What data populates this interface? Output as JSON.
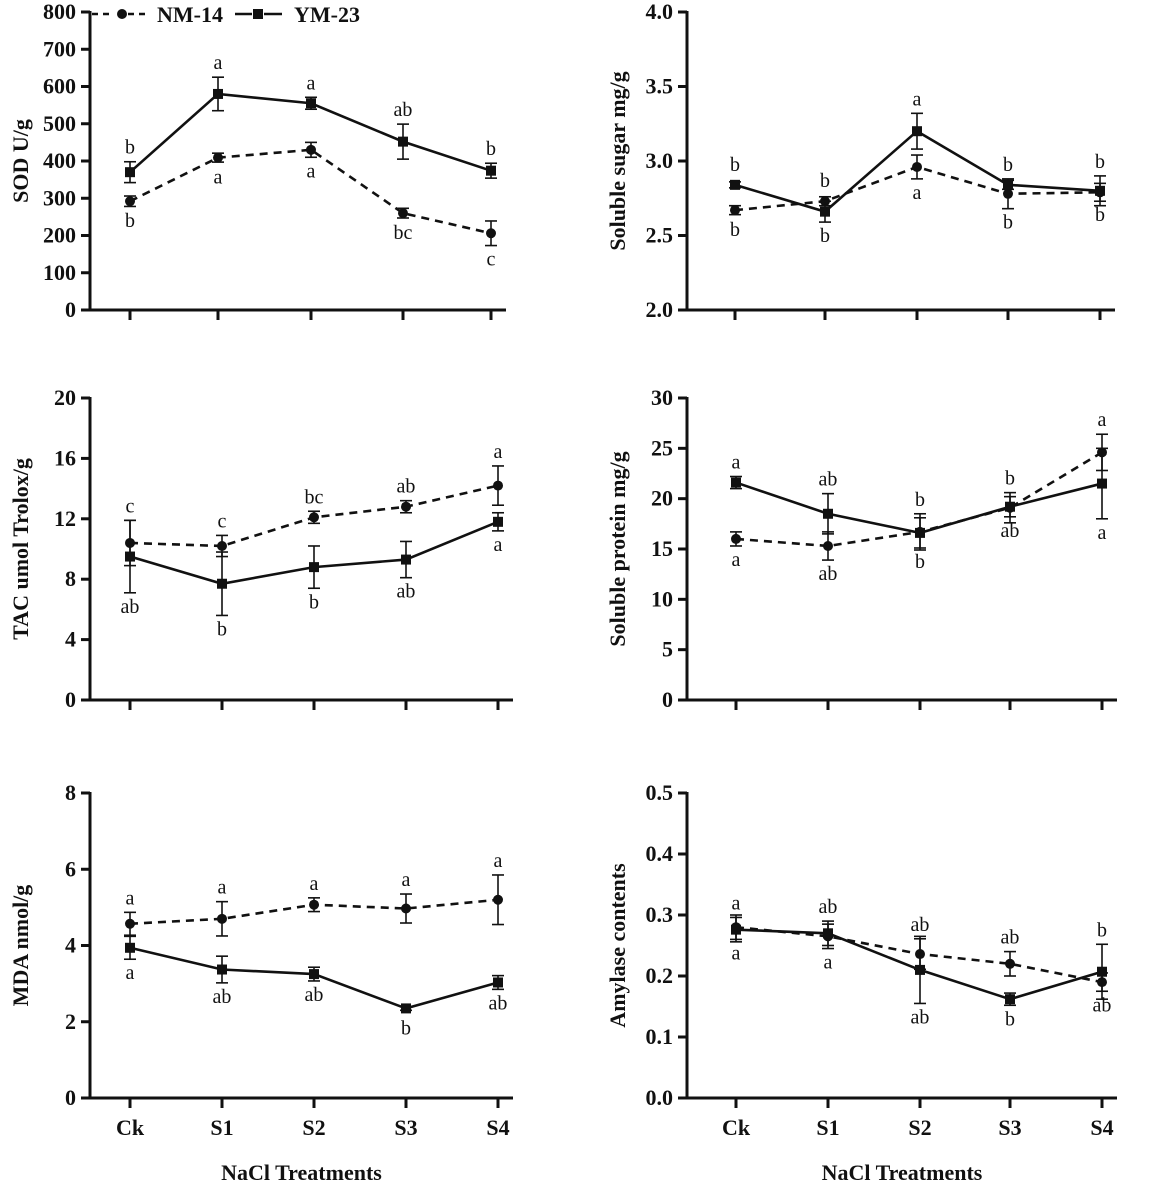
{
  "legend": {
    "series": [
      {
        "name": "NM-14",
        "style": "dashed",
        "marker": "circle"
      },
      {
        "name": "YM-23",
        "style": "solid",
        "marker": "square"
      }
    ]
  },
  "chart_data": [
    {
      "type": "line",
      "ylabel": "SOD U/g",
      "xlabel": "",
      "categories": [
        "Ck",
        "S1",
        "S2",
        "S3",
        "S4"
      ],
      "show_x_tick_labels": false,
      "ylim": [
        0,
        800
      ],
      "yticks": [
        "0",
        "100",
        "200",
        "300",
        "400",
        "500",
        "600",
        "700",
        "800"
      ],
      "series": [
        {
          "name": "NM-14",
          "values": [
            292,
            409,
            430,
            260,
            206
          ],
          "errors": [
            14,
            12,
            20,
            13,
            33
          ],
          "sig": [
            "b",
            "a",
            "a",
            "bc",
            "c"
          ],
          "sig_pos": [
            "below",
            "below",
            "below",
            "below",
            "below"
          ]
        },
        {
          "name": "YM-23",
          "values": [
            370,
            580,
            555,
            452,
            374
          ],
          "errors": [
            28,
            45,
            16,
            47,
            20
          ],
          "sig": [
            "b",
            "a",
            "a",
            "ab",
            "b"
          ],
          "sig_pos": [
            "above",
            "above",
            "above",
            "above",
            "above"
          ]
        }
      ]
    },
    {
      "type": "line",
      "ylabel": "Soluble sugar mg/g",
      "xlabel": "",
      "categories": [
        "Ck",
        "S1",
        "S2",
        "S3",
        "S4"
      ],
      "show_x_tick_labels": false,
      "ylim": [
        2.0,
        4.0
      ],
      "yticks": [
        "2.0",
        "2.5",
        "3.0",
        "3.5",
        "4.0"
      ],
      "series": [
        {
          "name": "NM-14",
          "values": [
            2.67,
            2.73,
            2.96,
            2.78,
            2.79
          ],
          "errors": [
            0.03,
            0.03,
            0.08,
            0.1,
            0.06
          ],
          "sig": [
            "b",
            "b",
            "a",
            "b",
            "b"
          ],
          "sig_pos": [
            "below",
            "above",
            "below",
            "below",
            "below"
          ]
        },
        {
          "name": "YM-23",
          "values": [
            2.84,
            2.66,
            3.2,
            2.84,
            2.8
          ],
          "errors": [
            0.02,
            0.07,
            0.12,
            0.03,
            0.1
          ],
          "sig": [
            "b",
            "b",
            "a",
            "b",
            "b"
          ],
          "sig_pos": [
            "above",
            "below",
            "above",
            "above",
            "above"
          ]
        }
      ]
    },
    {
      "type": "line",
      "ylabel": "TAC umol Trolox/g",
      "xlabel": "",
      "categories": [
        "Ck",
        "S1",
        "S2",
        "S3",
        "S4"
      ],
      "show_x_tick_labels": false,
      "ylim": [
        0,
        20
      ],
      "yticks": [
        "0",
        "4",
        "8",
        "12",
        "16",
        "20"
      ],
      "series": [
        {
          "name": "NM-14",
          "values": [
            10.4,
            10.2,
            12.1,
            12.8,
            14.2
          ],
          "errors": [
            1.5,
            0.7,
            0.4,
            0.4,
            1.3
          ],
          "sig": [
            "c",
            "c",
            "bc",
            "ab",
            "a"
          ],
          "sig_pos": [
            "above",
            "above",
            "above",
            "above",
            "above"
          ]
        },
        {
          "name": "YM-23",
          "values": [
            9.5,
            7.7,
            8.8,
            9.3,
            11.8
          ],
          "errors": [
            2.4,
            2.1,
            1.4,
            1.2,
            0.6
          ],
          "sig": [
            "ab",
            "b",
            "b",
            "ab",
            "a"
          ],
          "sig_pos": [
            "below",
            "below",
            "below",
            "below",
            "below"
          ]
        }
      ]
    },
    {
      "type": "line",
      "ylabel": "Soluble protein mg/g",
      "xlabel": "",
      "categories": [
        "Ck",
        "S1",
        "S2",
        "S3",
        "S4"
      ],
      "show_x_tick_labels": false,
      "ylim": [
        0,
        30
      ],
      "yticks": [
        "0",
        "5",
        "10",
        "15",
        "20",
        "25",
        "30"
      ],
      "series": [
        {
          "name": "NM-14",
          "values": [
            16.0,
            15.3,
            16.7,
            19.1,
            24.6
          ],
          "errors": [
            0.7,
            1.4,
            1.8,
            1.5,
            1.8
          ],
          "sig": [
            "a",
            "ab",
            "b",
            "b",
            "a"
          ],
          "sig_pos": [
            "below",
            "below",
            "above",
            "above",
            "above"
          ]
        },
        {
          "name": "YM-23",
          "values": [
            21.6,
            18.5,
            16.6,
            19.2,
            21.5
          ],
          "errors": [
            0.6,
            2.0,
            1.5,
            1.0,
            3.5
          ],
          "sig": [
            "a",
            "ab",
            "b",
            "ab",
            "a"
          ],
          "sig_pos": [
            "above",
            "above",
            "below",
            "below",
            "below"
          ]
        }
      ]
    },
    {
      "type": "line",
      "ylabel": "MDA nmol/g",
      "xlabel": "NaCl Treatments",
      "categories": [
        "Ck",
        "S1",
        "S2",
        "S3",
        "S4"
      ],
      "show_x_tick_labels": true,
      "ylim": [
        0,
        8
      ],
      "yticks": [
        "0",
        "2",
        "4",
        "6",
        "8"
      ],
      "series": [
        {
          "name": "NM-14",
          "values": [
            4.57,
            4.7,
            5.07,
            4.97,
            5.2
          ],
          "errors": [
            0.3,
            0.45,
            0.18,
            0.38,
            0.65
          ],
          "sig": [
            "a",
            "a",
            "a",
            "a",
            "a"
          ],
          "sig_pos": [
            "above",
            "above",
            "above",
            "above",
            "above"
          ]
        },
        {
          "name": "YM-23",
          "values": [
            3.94,
            3.37,
            3.25,
            2.35,
            3.03
          ],
          "errors": [
            0.3,
            0.35,
            0.18,
            0.05,
            0.18
          ],
          "sig": [
            "a",
            "ab",
            "ab",
            "b",
            "ab"
          ],
          "sig_pos": [
            "below",
            "below",
            "below",
            "below",
            "below"
          ]
        }
      ]
    },
    {
      "type": "line",
      "ylabel": "Amylase contents",
      "xlabel": "NaCl Treatments",
      "categories": [
        "Ck",
        "S1",
        "S2",
        "S3",
        "S4"
      ],
      "show_x_tick_labels": true,
      "ylim": [
        0.0,
        0.5
      ],
      "yticks": [
        "0.0",
        "0.1",
        "0.2",
        "0.3",
        "0.4",
        "0.5"
      ],
      "series": [
        {
          "name": "NM-14",
          "values": [
            0.28,
            0.265,
            0.236,
            0.22,
            0.19
          ],
          "errors": [
            0.02,
            0.02,
            0.025,
            0.02,
            0.015
          ],
          "sig": [
            "a",
            "a",
            "ab",
            "ab",
            "ab"
          ],
          "sig_pos": [
            "below",
            "below",
            "above",
            "above",
            "below"
          ]
        },
        {
          "name": "YM-23",
          "values": [
            0.276,
            0.27,
            0.21,
            0.162,
            0.207
          ],
          "errors": [
            0.02,
            0.02,
            0.055,
            0.01,
            0.045
          ],
          "sig": [
            "a",
            "ab",
            "ab",
            "b",
            "b"
          ],
          "sig_pos": [
            "above",
            "above",
            "below",
            "below",
            "above"
          ]
        }
      ]
    }
  ]
}
